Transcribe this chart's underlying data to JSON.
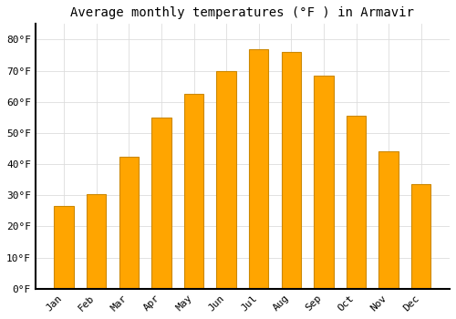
{
  "title": "Average monthly temperatures (°F ) in Armavir",
  "months": [
    "Jan",
    "Feb",
    "Mar",
    "Apr",
    "May",
    "Jun",
    "Jul",
    "Aug",
    "Sep",
    "Oct",
    "Nov",
    "Dec"
  ],
  "values": [
    26.5,
    30.5,
    42.5,
    55,
    62.5,
    70,
    77,
    76,
    68.5,
    55.5,
    44,
    33.5
  ],
  "bar_color": "#FFA500",
  "bar_edge_color": "#CC8800",
  "background_color": "#FFFFFF",
  "grid_color": "#DDDDDD",
  "ylim": [
    0,
    85
  ],
  "yticks": [
    0,
    10,
    20,
    30,
    40,
    50,
    60,
    70,
    80
  ],
  "title_fontsize": 10,
  "tick_fontsize": 8,
  "spine_color": "#000000"
}
